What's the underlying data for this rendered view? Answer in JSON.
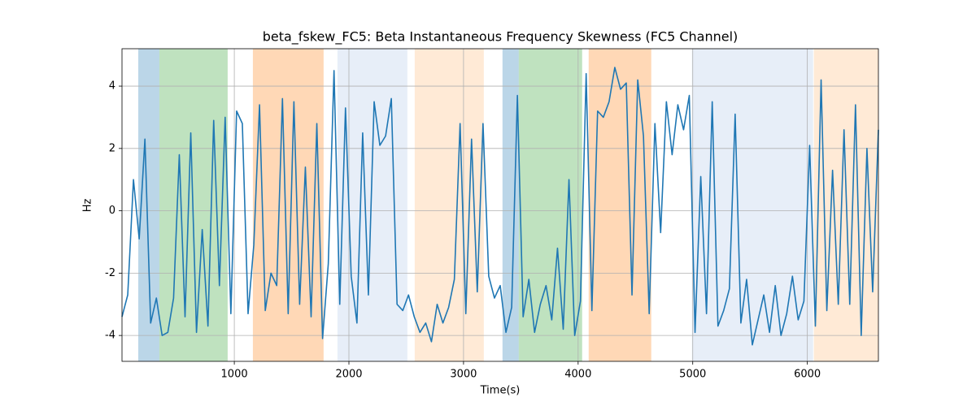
{
  "chart_data": {
    "type": "line",
    "title": "beta_fskew_FC5: Beta Instantaneous Frequency Skewness (FC5 Channel)",
    "xlabel": "Time(s)",
    "ylabel": "Hz",
    "xlim": [
      20,
      6620
    ],
    "ylim": [
      -4.83,
      5.2
    ],
    "xticks": [
      1000,
      2000,
      3000,
      4000,
      5000,
      6000
    ],
    "yticks": [
      -4,
      -2,
      0,
      2,
      4
    ],
    "grid": true,
    "spans": [
      {
        "start": 162,
        "end": 346,
        "color": "#1f77b4",
        "opacity": 0.3
      },
      {
        "start": 346,
        "end": 942,
        "color": "#2ca02c",
        "opacity": 0.3
      },
      {
        "start": 1162,
        "end": 1779,
        "color": "#ff7f0e",
        "opacity": 0.3
      },
      {
        "start": 1900,
        "end": 2510,
        "color": "#aec7e8",
        "opacity": 0.3
      },
      {
        "start": 2574,
        "end": 3177,
        "color": "#ffbb78",
        "opacity": 0.3
      },
      {
        "start": 3340,
        "end": 3482,
        "color": "#1f77b4",
        "opacity": 0.3
      },
      {
        "start": 3482,
        "end": 4035,
        "color": "#2ca02c",
        "opacity": 0.3
      },
      {
        "start": 4092,
        "end": 4638,
        "color": "#ff7f0e",
        "opacity": 0.3
      },
      {
        "start": 4993,
        "end": 6050,
        "color": "#aec7e8",
        "opacity": 0.3
      },
      {
        "start": 6057,
        "end": 6620,
        "color": "#ffbb78",
        "opacity": 0.3
      }
    ],
    "x": [
      20,
      70,
      120,
      170,
      220,
      270,
      320,
      370,
      420,
      470,
      520,
      570,
      620,
      670,
      720,
      770,
      820,
      870,
      920,
      970,
      1020,
      1070,
      1120,
      1170,
      1220,
      1270,
      1320,
      1370,
      1420,
      1470,
      1520,
      1570,
      1620,
      1670,
      1720,
      1770,
      1820,
      1870,
      1920,
      1970,
      2020,
      2070,
      2120,
      2170,
      2220,
      2270,
      2320,
      2370,
      2420,
      2470,
      2520,
      2570,
      2620,
      2670,
      2720,
      2770,
      2820,
      2870,
      2920,
      2970,
      3020,
      3070,
      3120,
      3170,
      3220,
      3270,
      3320,
      3370,
      3420,
      3470,
      3520,
      3570,
      3620,
      3670,
      3720,
      3770,
      3820,
      3870,
      3920,
      3970,
      4020,
      4070,
      4120,
      4170,
      4220,
      4270,
      4320,
      4370,
      4420,
      4470,
      4520,
      4570,
      4620,
      4670,
      4720,
      4770,
      4820,
      4870,
      4920,
      4970,
      5020,
      5070,
      5120,
      5170,
      5220,
      5270,
      5320,
      5370,
      5420,
      5470,
      5520,
      5570,
      5620,
      5670,
      5720,
      5770,
      5820,
      5870,
      5920,
      5970,
      6020,
      6070,
      6120,
      6170,
      6220,
      6270,
      6320,
      6370,
      6420,
      6470,
      6520,
      6570,
      6620
    ],
    "series": [
      {
        "color": "#1f77b4",
        "values": [
          -3.4,
          -2.7,
          1.0,
          -0.9,
          2.3,
          -3.6,
          -2.8,
          -4.0,
          -3.9,
          -2.8,
          1.8,
          -3.4,
          2.5,
          -3.9,
          -0.6,
          -3.7,
          2.9,
          -2.4,
          3.0,
          -3.3,
          3.2,
          2.8,
          -3.3,
          -1.1,
          3.4,
          -3.2,
          -2.0,
          -2.4,
          3.6,
          -3.3,
          3.5,
          -3.0,
          1.4,
          -3.4,
          2.8,
          -4.1,
          -1.7,
          4.5,
          -3.0,
          3.3,
          -2.1,
          -3.6,
          2.5,
          -2.7,
          3.5,
          2.1,
          2.4,
          3.6,
          -3.0,
          -3.2,
          -2.7,
          -3.4,
          -3.9,
          -3.6,
          -4.2,
          -3.0,
          -3.6,
          -3.1,
          -2.2,
          2.8,
          -3.3,
          2.3,
          -2.6,
          2.8,
          -2.1,
          -2.8,
          -2.4,
          -3.9,
          -3.1,
          3.7,
          -3.4,
          -2.2,
          -3.9,
          -3.0,
          -2.4,
          -3.5,
          -1.2,
          -3.8,
          1.0,
          -4.0,
          -2.9,
          4.4,
          -3.2,
          3.2,
          3.0,
          3.5,
          4.6,
          3.9,
          4.1,
          -2.7,
          4.2,
          2.4,
          -3.3,
          2.8,
          -0.7,
          3.5,
          1.8,
          3.4,
          2.6,
          3.7,
          -3.9,
          1.1,
          -3.3,
          3.5,
          -3.7,
          -3.2,
          -2.5,
          3.1,
          -3.6,
          -2.2,
          -4.3,
          -3.5,
          -2.7,
          -3.9,
          -2.4,
          -4.0,
          -3.3,
          -2.1,
          -3.5,
          -2.9,
          2.1,
          -3.7,
          4.2,
          -3.2,
          1.3,
          -3.0,
          2.6,
          -3.0,
          3.4,
          -4.0,
          2.0,
          -2.6,
          2.6
        ]
      }
    ]
  }
}
